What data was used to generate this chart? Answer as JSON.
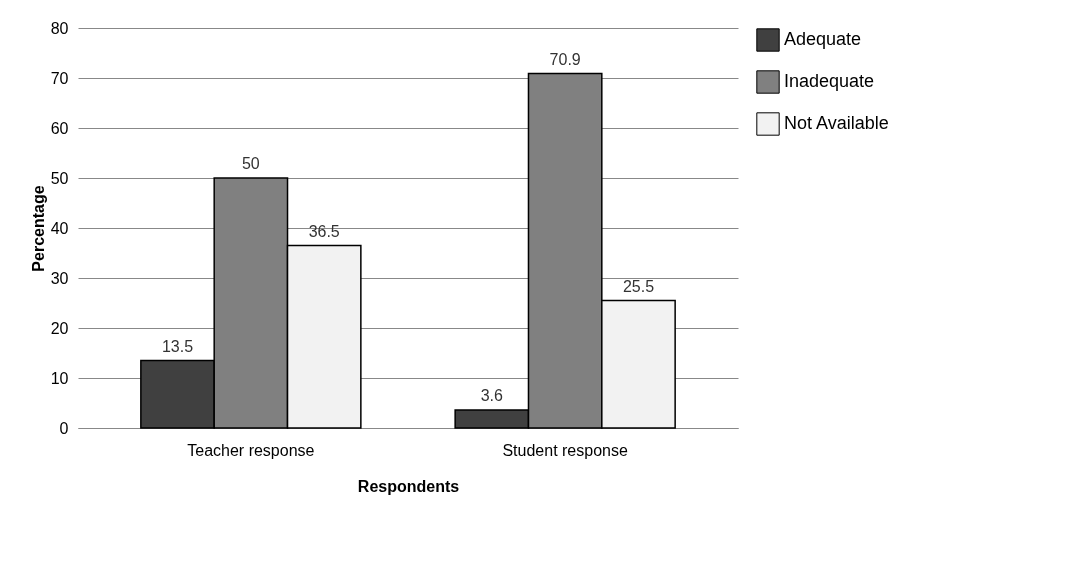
{
  "chart_data": {
    "type": "bar",
    "xlabel": "Respondents",
    "ylabel": "Percentage",
    "categories": [
      "Teacher response",
      "Student response"
    ],
    "series": [
      {
        "name": "Adequate",
        "color": "#404040",
        "values": [
          13.5,
          3.6
        ]
      },
      {
        "name": "Inadequate",
        "color": "#808080",
        "values": [
          50,
          70.9
        ]
      },
      {
        "name": "Not Available",
        "color": "#f2f2f2",
        "values": [
          36.5,
          25.5
        ]
      }
    ],
    "ylim": [
      0,
      80
    ],
    "yticks": [
      0,
      10,
      20,
      30,
      40,
      50,
      60,
      70,
      80
    ],
    "grid": "y",
    "legend": "right",
    "data_labels": true
  }
}
